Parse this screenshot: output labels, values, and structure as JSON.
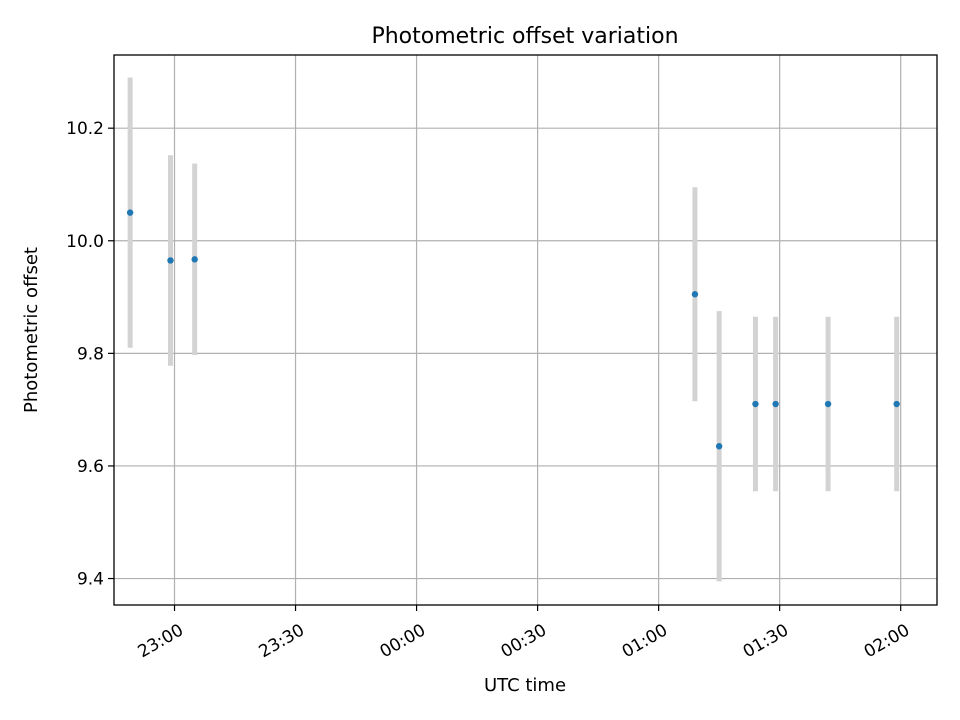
{
  "chart_data": {
    "type": "scatter",
    "title": "Photometric offset variation",
    "xlabel": "UTC time",
    "ylabel": "Photometric offset",
    "x_axis_kind": "time",
    "x_ticks": [
      "23:00",
      "23:30",
      "00:00",
      "00:30",
      "01:00",
      "01:30",
      "02:00"
    ],
    "x_range": [
      "22:45",
      "02:09"
    ],
    "y_ticks": [
      "9.4",
      "9.6",
      "9.8",
      "10.0",
      "10.2"
    ],
    "ylim": [
      9.353,
      10.33
    ],
    "grid": true,
    "colors": {
      "point": "#1f77b4",
      "errorbar": "#d3d3d3",
      "grid": "#b0b0b0"
    },
    "points": [
      {
        "x": "22:49",
        "y": 10.05,
        "ylow": 9.81,
        "yhigh": 10.29
      },
      {
        "x": "22:59",
        "y": 9.965,
        "ylow": 9.778,
        "yhigh": 10.152
      },
      {
        "x": "23:05",
        "y": 9.967,
        "ylow": 9.797,
        "yhigh": 10.137
      },
      {
        "x": "01:09",
        "y": 9.905,
        "ylow": 9.715,
        "yhigh": 10.095
      },
      {
        "x": "01:15",
        "y": 9.635,
        "ylow": 9.395,
        "yhigh": 9.875
      },
      {
        "x": "01:24",
        "y": 9.71,
        "ylow": 9.555,
        "yhigh": 9.865
      },
      {
        "x": "01:29",
        "y": 9.71,
        "ylow": 9.555,
        "yhigh": 9.865
      },
      {
        "x": "01:42",
        "y": 9.71,
        "ylow": 9.555,
        "yhigh": 9.865
      },
      {
        "x": "01:59",
        "y": 9.71,
        "ylow": 9.555,
        "yhigh": 9.865
      }
    ]
  }
}
